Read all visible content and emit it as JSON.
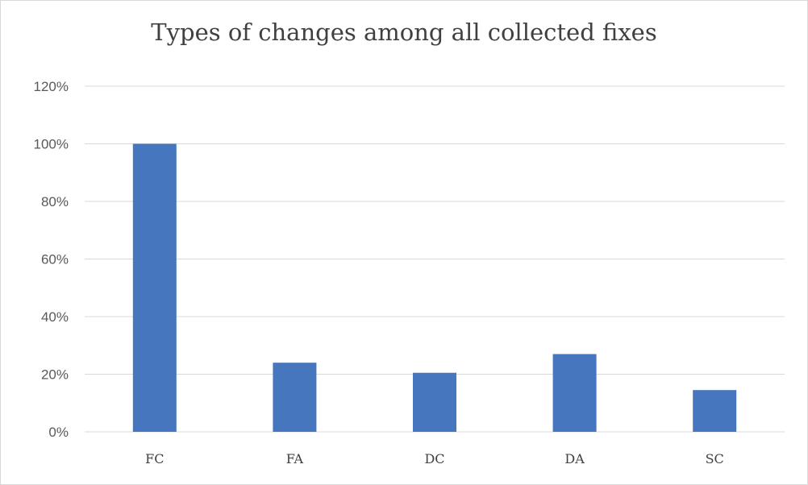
{
  "chart_data": {
    "type": "bar",
    "title": "Types of changes among all collected fixes",
    "categories": [
      "FC",
      "FA",
      "DC",
      "DA",
      "SC"
    ],
    "values": [
      100,
      24,
      20.5,
      27,
      14.5
    ],
    "value_unit": "%",
    "ylim": [
      0,
      120
    ],
    "yticks": [
      "0%",
      "20%",
      "40%",
      "60%",
      "80%",
      "100%",
      "120%"
    ],
    "xlabel": "",
    "ylabel": "",
    "grid": true,
    "legend": "none",
    "bar_color": "#4677be",
    "grid_color": "#d9d9d9"
  }
}
